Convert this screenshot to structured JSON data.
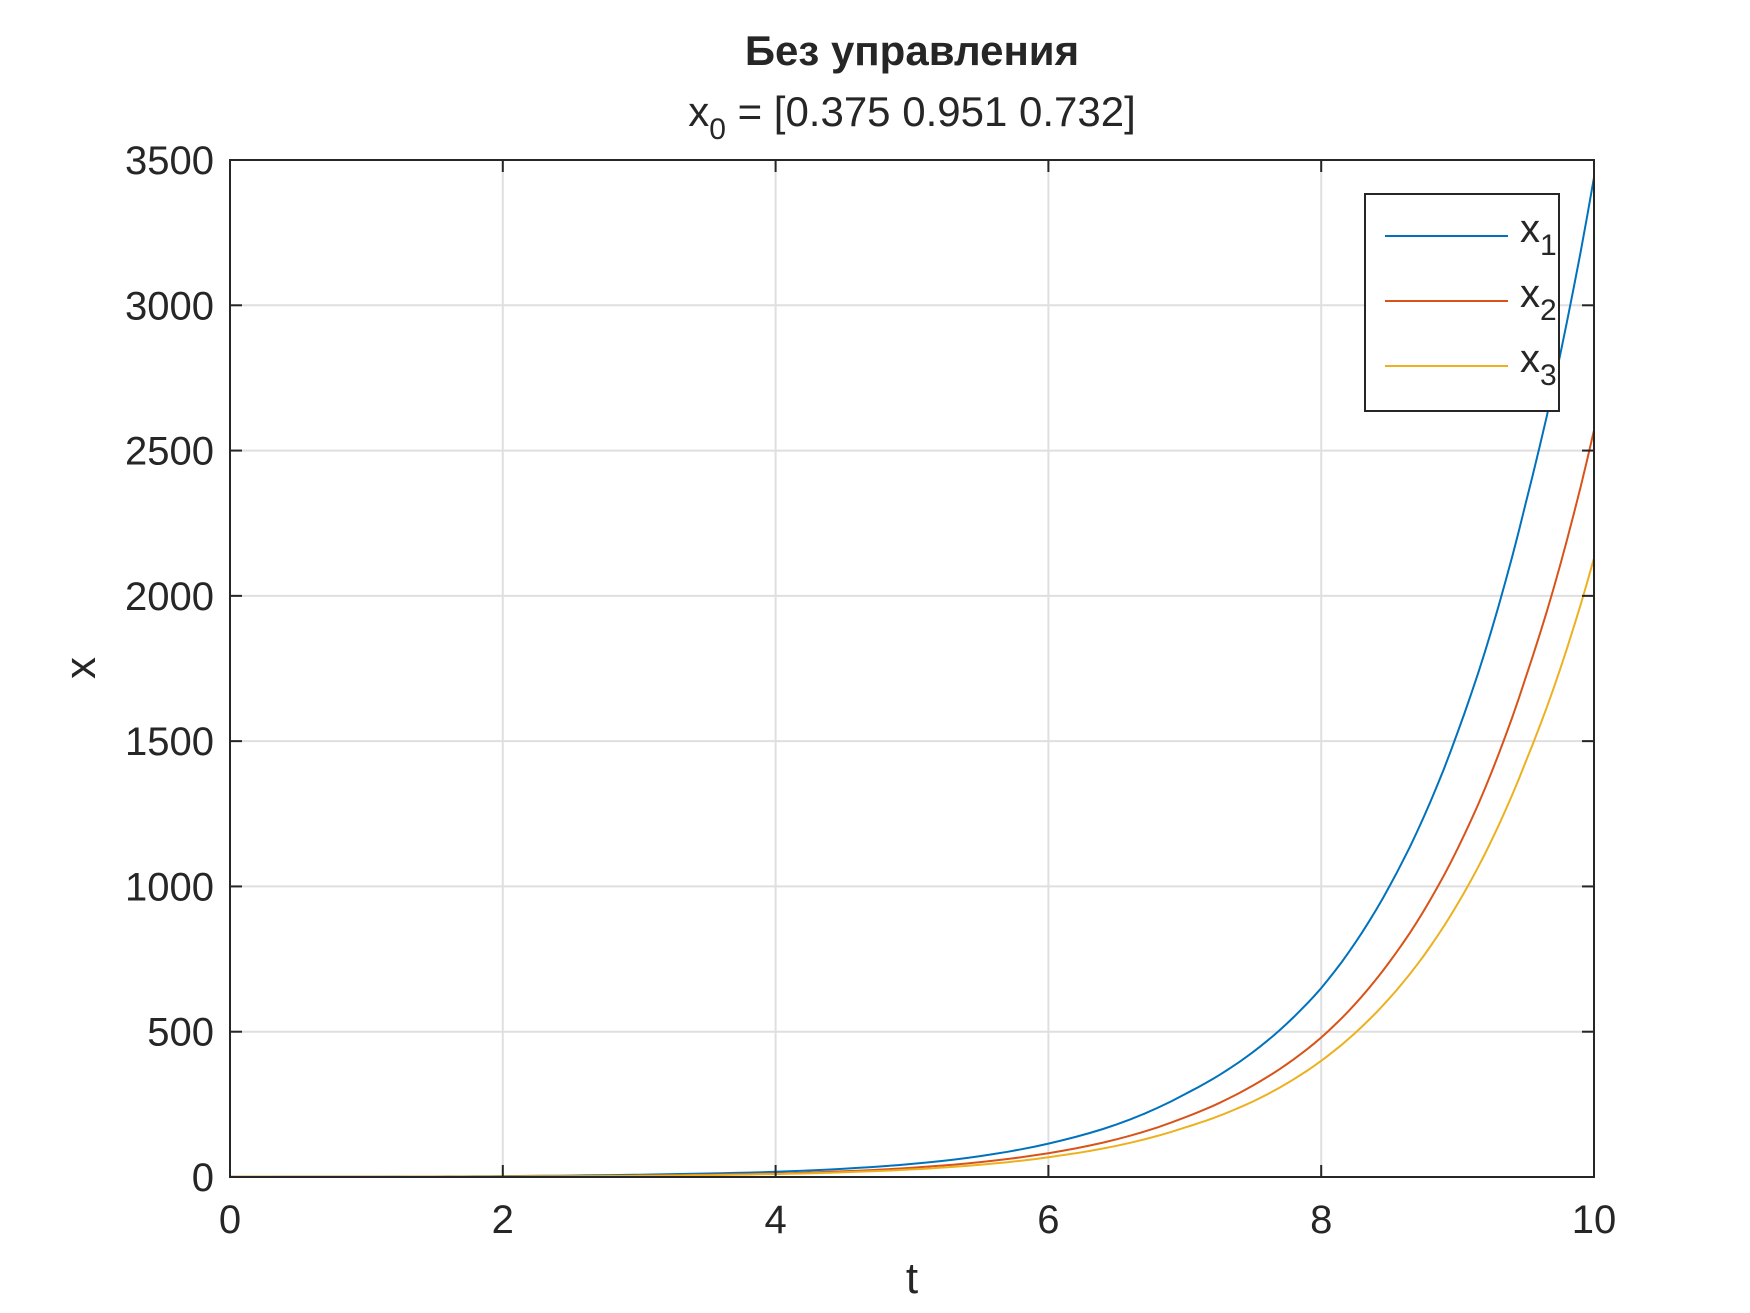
{
  "title": "Без управления",
  "subtitle": {
    "prefix": "x",
    "sub": "0",
    "rest": " = [0.375 0.951 0.732]"
  },
  "chart_data": {
    "type": "line",
    "title": "Без управления",
    "subtitle": "x_0 = [0.375 0.951 0.732]",
    "xlabel": "t",
    "ylabel": "x",
    "xlim": [
      0,
      10
    ],
    "ylim": [
      0,
      3500
    ],
    "xticks": [
      0,
      2,
      4,
      6,
      8,
      10
    ],
    "yticks": [
      0,
      500,
      1000,
      1500,
      2000,
      2500,
      3000,
      3500
    ],
    "grid": true,
    "legend_position": "top-right",
    "x": [
      0,
      1,
      2,
      3,
      4,
      5,
      6,
      7,
      7.5,
      8,
      8.5,
      9,
      9.5,
      10
    ],
    "series": [
      {
        "name": "x1",
        "label": "x",
        "sub": "1",
        "color": "#0072BD",
        "values": [
          0.375,
          1,
          3,
          8,
          18,
          45,
          115,
          285,
          430,
          650,
          1000,
          1530,
          2320,
          3440
        ]
      },
      {
        "name": "x2",
        "label": "x",
        "sub": "2",
        "color": "#D95319",
        "values": [
          0.951,
          1,
          2,
          5,
          12,
          32,
          82,
          205,
          315,
          480,
          740,
          1130,
          1720,
          2570
        ]
      },
      {
        "name": "x3",
        "label": "x",
        "sub": "3",
        "color": "#EDB120",
        "values": [
          0.732,
          1,
          2,
          4,
          10,
          26,
          68,
          170,
          260,
          400,
          615,
          940,
          1430,
          2130
        ]
      }
    ]
  }
}
